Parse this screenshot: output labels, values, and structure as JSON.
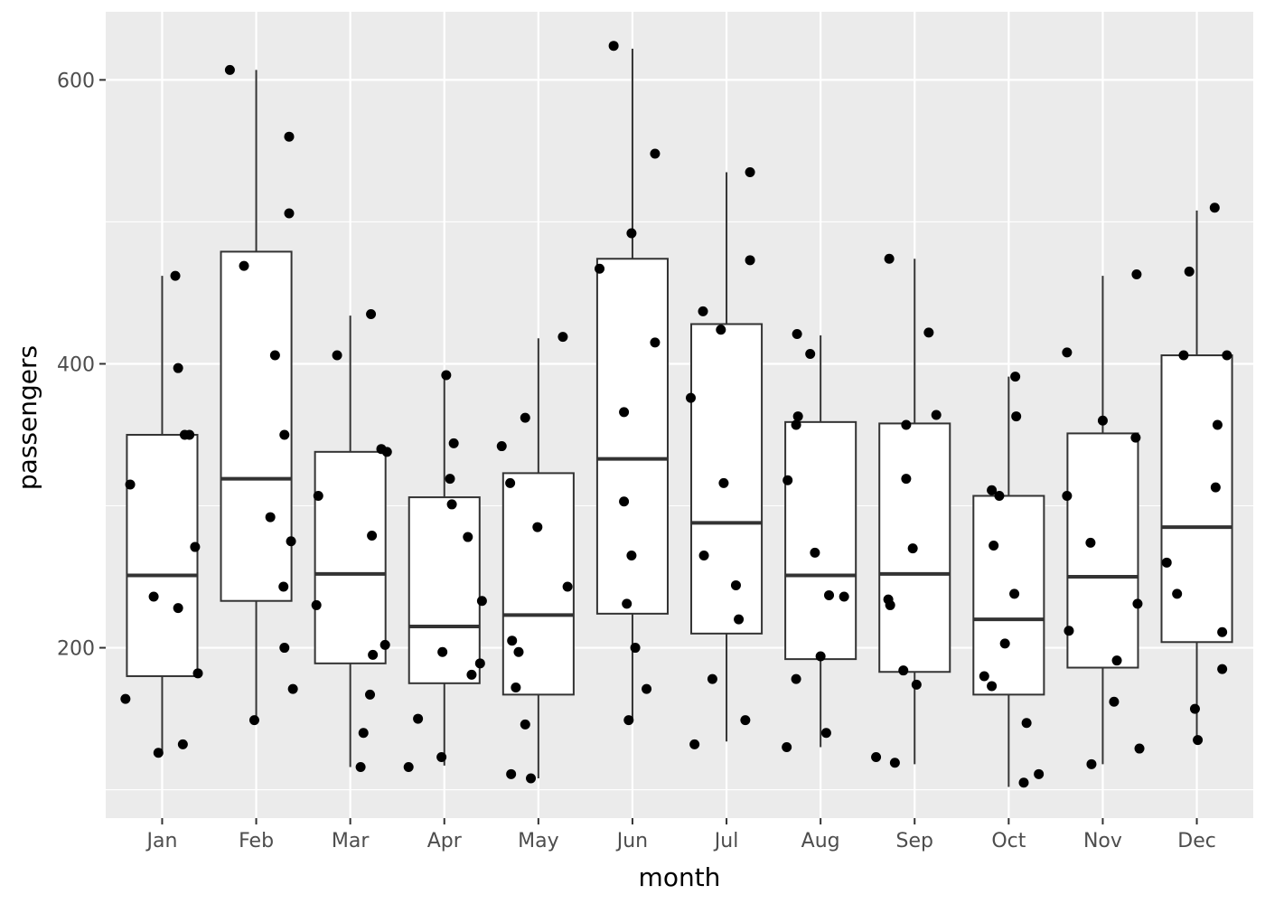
{
  "chart_data": {
    "type": "box",
    "xlabel": "month",
    "ylabel": "passengers",
    "categories": [
      "Jan",
      "Feb",
      "Mar",
      "Apr",
      "May",
      "Jun",
      "Jul",
      "Aug",
      "Sep",
      "Oct",
      "Nov",
      "Dec"
    ],
    "yticks": [
      200,
      400,
      600
    ],
    "ylim": [
      80,
      648
    ],
    "grid": true,
    "boxes": [
      {
        "category": "Jan",
        "whisker_low": 126,
        "q1": 180,
        "median": 251,
        "q3": 350,
        "whisker_high": 462
      },
      {
        "category": "Feb",
        "whisker_low": 150,
        "q1": 233,
        "median": 319,
        "q3": 479,
        "whisker_high": 607
      },
      {
        "category": "Mar",
        "whisker_low": 116,
        "q1": 189,
        "median": 252,
        "q3": 338,
        "whisker_high": 434
      },
      {
        "category": "Apr",
        "whisker_low": 117,
        "q1": 175,
        "median": 215,
        "q3": 306,
        "whisker_high": 391
      },
      {
        "category": "May",
        "whisker_low": 108,
        "q1": 167,
        "median": 223,
        "q3": 323,
        "whisker_high": 418
      },
      {
        "category": "Jun",
        "whisker_low": 149,
        "q1": 224,
        "median": 333,
        "q3": 474,
        "whisker_high": 622
      },
      {
        "category": "Jul",
        "whisker_low": 134,
        "q1": 210,
        "median": 288,
        "q3": 428,
        "whisker_high": 535
      },
      {
        "category": "Aug",
        "whisker_low": 130,
        "q1": 192,
        "median": 251,
        "q3": 359,
        "whisker_high": 420
      },
      {
        "category": "Sep",
        "whisker_low": 118,
        "q1": 183,
        "median": 252,
        "q3": 358,
        "whisker_high": 474
      },
      {
        "category": "Oct",
        "whisker_low": 102,
        "q1": 167,
        "median": 220,
        "q3": 307,
        "whisker_high": 391
      },
      {
        "category": "Nov",
        "whisker_low": 118,
        "q1": 186,
        "median": 250,
        "q3": 351,
        "whisker_high": 462
      },
      {
        "category": "Dec",
        "whisker_low": 137,
        "q1": 204,
        "median": 285,
        "q3": 406,
        "whisker_high": 508
      }
    ],
    "points": [
      {
        "x": "Jan",
        "offset": -0.39,
        "y": 164
      },
      {
        "x": "Jan",
        "offset": -0.34,
        "y": 315
      },
      {
        "x": "Jan",
        "offset": -0.09,
        "y": 236
      },
      {
        "x": "Jan",
        "offset": -0.04,
        "y": 126
      },
      {
        "x": "Jan",
        "offset": 0.14,
        "y": 462
      },
      {
        "x": "Jan",
        "offset": 0.17,
        "y": 397
      },
      {
        "x": "Jan",
        "offset": 0.17,
        "y": 228
      },
      {
        "x": "Jan",
        "offset": 0.22,
        "y": 132
      },
      {
        "x": "Jan",
        "offset": 0.24,
        "y": 350
      },
      {
        "x": "Jan",
        "offset": 0.29,
        "y": 350
      },
      {
        "x": "Jan",
        "offset": 0.35,
        "y": 271
      },
      {
        "x": "Jan",
        "offset": 0.38,
        "y": 182
      },
      {
        "x": "Feb",
        "offset": -0.28,
        "y": 607
      },
      {
        "x": "Feb",
        "offset": -0.13,
        "y": 469
      },
      {
        "x": "Feb",
        "offset": -0.02,
        "y": 149
      },
      {
        "x": "Feb",
        "offset": 0.15,
        "y": 292
      },
      {
        "x": "Feb",
        "offset": 0.2,
        "y": 406
      },
      {
        "x": "Feb",
        "offset": 0.29,
        "y": 243
      },
      {
        "x": "Feb",
        "offset": 0.3,
        "y": 200
      },
      {
        "x": "Feb",
        "offset": 0.3,
        "y": 350
      },
      {
        "x": "Feb",
        "offset": 0.35,
        "y": 560
      },
      {
        "x": "Feb",
        "offset": 0.35,
        "y": 506
      },
      {
        "x": "Feb",
        "offset": 0.37,
        "y": 275
      },
      {
        "x": "Feb",
        "offset": 0.39,
        "y": 171
      },
      {
        "x": "Mar",
        "offset": -0.36,
        "y": 230
      },
      {
        "x": "Mar",
        "offset": -0.34,
        "y": 307
      },
      {
        "x": "Mar",
        "offset": -0.14,
        "y": 406
      },
      {
        "x": "Mar",
        "offset": 0.11,
        "y": 116
      },
      {
        "x": "Mar",
        "offset": 0.14,
        "y": 140
      },
      {
        "x": "Mar",
        "offset": 0.21,
        "y": 167
      },
      {
        "x": "Mar",
        "offset": 0.22,
        "y": 435
      },
      {
        "x": "Mar",
        "offset": 0.23,
        "y": 279
      },
      {
        "x": "Mar",
        "offset": 0.24,
        "y": 195
      },
      {
        "x": "Mar",
        "offset": 0.33,
        "y": 340
      },
      {
        "x": "Mar",
        "offset": 0.37,
        "y": 202
      },
      {
        "x": "Mar",
        "offset": 0.39,
        "y": 338
      },
      {
        "x": "Apr",
        "offset": -0.38,
        "y": 116
      },
      {
        "x": "Apr",
        "offset": -0.28,
        "y": 150
      },
      {
        "x": "Apr",
        "offset": -0.03,
        "y": 123
      },
      {
        "x": "Apr",
        "offset": -0.02,
        "y": 197
      },
      {
        "x": "Apr",
        "offset": 0.02,
        "y": 392
      },
      {
        "x": "Apr",
        "offset": 0.06,
        "y": 319
      },
      {
        "x": "Apr",
        "offset": 0.08,
        "y": 301
      },
      {
        "x": "Apr",
        "offset": 0.1,
        "y": 344
      },
      {
        "x": "Apr",
        "offset": 0.25,
        "y": 278
      },
      {
        "x": "Apr",
        "offset": 0.29,
        "y": 181
      },
      {
        "x": "Apr",
        "offset": 0.38,
        "y": 189
      },
      {
        "x": "Apr",
        "offset": 0.4,
        "y": 233
      },
      {
        "x": "May",
        "offset": -0.39,
        "y": 342
      },
      {
        "x": "May",
        "offset": -0.3,
        "y": 316
      },
      {
        "x": "May",
        "offset": -0.29,
        "y": 111
      },
      {
        "x": "May",
        "offset": -0.28,
        "y": 205
      },
      {
        "x": "May",
        "offset": -0.24,
        "y": 172
      },
      {
        "x": "May",
        "offset": -0.21,
        "y": 197
      },
      {
        "x": "May",
        "offset": -0.14,
        "y": 362
      },
      {
        "x": "May",
        "offset": -0.14,
        "y": 146
      },
      {
        "x": "May",
        "offset": -0.08,
        "y": 108
      },
      {
        "x": "May",
        "offset": -0.01,
        "y": 285
      },
      {
        "x": "May",
        "offset": 0.26,
        "y": 419
      },
      {
        "x": "May",
        "offset": 0.31,
        "y": 243
      },
      {
        "x": "Jun",
        "offset": -0.35,
        "y": 467
      },
      {
        "x": "Jun",
        "offset": -0.2,
        "y": 624
      },
      {
        "x": "Jun",
        "offset": -0.09,
        "y": 366
      },
      {
        "x": "Jun",
        "offset": -0.09,
        "y": 303
      },
      {
        "x": "Jun",
        "offset": -0.06,
        "y": 231
      },
      {
        "x": "Jun",
        "offset": -0.04,
        "y": 149
      },
      {
        "x": "Jun",
        "offset": -0.01,
        "y": 265
      },
      {
        "x": "Jun",
        "offset": -0.01,
        "y": 492
      },
      {
        "x": "Jun",
        "offset": 0.03,
        "y": 200
      },
      {
        "x": "Jun",
        "offset": 0.15,
        "y": 171
      },
      {
        "x": "Jun",
        "offset": 0.24,
        "y": 415
      },
      {
        "x": "Jun",
        "offset": 0.24,
        "y": 548
      },
      {
        "x": "Jul",
        "offset": -0.38,
        "y": 376
      },
      {
        "x": "Jul",
        "offset": -0.34,
        "y": 132
      },
      {
        "x": "Jul",
        "offset": -0.25,
        "y": 437
      },
      {
        "x": "Jul",
        "offset": -0.24,
        "y": 265
      },
      {
        "x": "Jul",
        "offset": -0.15,
        "y": 178
      },
      {
        "x": "Jul",
        "offset": -0.06,
        "y": 424
      },
      {
        "x": "Jul",
        "offset": -0.03,
        "y": 316
      },
      {
        "x": "Jul",
        "offset": 0.1,
        "y": 244
      },
      {
        "x": "Jul",
        "offset": 0.13,
        "y": 220
      },
      {
        "x": "Jul",
        "offset": 0.2,
        "y": 149
      },
      {
        "x": "Jul",
        "offset": 0.25,
        "y": 473
      },
      {
        "x": "Jul",
        "offset": 0.25,
        "y": 535
      },
      {
        "x": "Aug",
        "offset": -0.36,
        "y": 130
      },
      {
        "x": "Aug",
        "offset": -0.35,
        "y": 318
      },
      {
        "x": "Aug",
        "offset": -0.26,
        "y": 178
      },
      {
        "x": "Aug",
        "offset": -0.26,
        "y": 357
      },
      {
        "x": "Aug",
        "offset": -0.25,
        "y": 421
      },
      {
        "x": "Aug",
        "offset": -0.24,
        "y": 363
      },
      {
        "x": "Aug",
        "offset": -0.11,
        "y": 407
      },
      {
        "x": "Aug",
        "offset": -0.06,
        "y": 267
      },
      {
        "x": "Aug",
        "offset": 0.0,
        "y": 194
      },
      {
        "x": "Aug",
        "offset": 0.06,
        "y": 140
      },
      {
        "x": "Aug",
        "offset": 0.09,
        "y": 237
      },
      {
        "x": "Aug",
        "offset": 0.25,
        "y": 236
      },
      {
        "x": "Sep",
        "offset": -0.41,
        "y": 123
      },
      {
        "x": "Sep",
        "offset": -0.28,
        "y": 234
      },
      {
        "x": "Sep",
        "offset": -0.27,
        "y": 474
      },
      {
        "x": "Sep",
        "offset": -0.26,
        "y": 230
      },
      {
        "x": "Sep",
        "offset": -0.21,
        "y": 119
      },
      {
        "x": "Sep",
        "offset": -0.12,
        "y": 184
      },
      {
        "x": "Sep",
        "offset": -0.09,
        "y": 357
      },
      {
        "x": "Sep",
        "offset": -0.09,
        "y": 319
      },
      {
        "x": "Sep",
        "offset": -0.02,
        "y": 270
      },
      {
        "x": "Sep",
        "offset": 0.02,
        "y": 174
      },
      {
        "x": "Sep",
        "offset": 0.15,
        "y": 422
      },
      {
        "x": "Sep",
        "offset": 0.23,
        "y": 364
      },
      {
        "x": "Oct",
        "offset": -0.26,
        "y": 180
      },
      {
        "x": "Oct",
        "offset": -0.18,
        "y": 173
      },
      {
        "x": "Oct",
        "offset": -0.18,
        "y": 311
      },
      {
        "x": "Oct",
        "offset": -0.16,
        "y": 272
      },
      {
        "x": "Oct",
        "offset": -0.1,
        "y": 307
      },
      {
        "x": "Oct",
        "offset": -0.04,
        "y": 203
      },
      {
        "x": "Oct",
        "offset": 0.06,
        "y": 238
      },
      {
        "x": "Oct",
        "offset": 0.07,
        "y": 391
      },
      {
        "x": "Oct",
        "offset": 0.08,
        "y": 363
      },
      {
        "x": "Oct",
        "offset": 0.16,
        "y": 105
      },
      {
        "x": "Oct",
        "offset": 0.19,
        "y": 147
      },
      {
        "x": "Oct",
        "offset": 0.32,
        "y": 111
      },
      {
        "x": "Nov",
        "offset": -0.38,
        "y": 408
      },
      {
        "x": "Nov",
        "offset": -0.38,
        "y": 307
      },
      {
        "x": "Nov",
        "offset": -0.36,
        "y": 212
      },
      {
        "x": "Nov",
        "offset": -0.13,
        "y": 274
      },
      {
        "x": "Nov",
        "offset": -0.12,
        "y": 118
      },
      {
        "x": "Nov",
        "offset": 0.0,
        "y": 360
      },
      {
        "x": "Nov",
        "offset": 0.12,
        "y": 162
      },
      {
        "x": "Nov",
        "offset": 0.15,
        "y": 191
      },
      {
        "x": "Nov",
        "offset": 0.35,
        "y": 348
      },
      {
        "x": "Nov",
        "offset": 0.36,
        "y": 463
      },
      {
        "x": "Nov",
        "offset": 0.37,
        "y": 231
      },
      {
        "x": "Nov",
        "offset": 0.39,
        "y": 129
      },
      {
        "x": "Dec",
        "offset": -0.32,
        "y": 260
      },
      {
        "x": "Dec",
        "offset": -0.21,
        "y": 238
      },
      {
        "x": "Dec",
        "offset": -0.14,
        "y": 406
      },
      {
        "x": "Dec",
        "offset": -0.08,
        "y": 465
      },
      {
        "x": "Dec",
        "offset": -0.02,
        "y": 157
      },
      {
        "x": "Dec",
        "offset": 0.01,
        "y": 135
      },
      {
        "x": "Dec",
        "offset": 0.19,
        "y": 510
      },
      {
        "x": "Dec",
        "offset": 0.2,
        "y": 313
      },
      {
        "x": "Dec",
        "offset": 0.22,
        "y": 357
      },
      {
        "x": "Dec",
        "offset": 0.27,
        "y": 185
      },
      {
        "x": "Dec",
        "offset": 0.27,
        "y": 211
      },
      {
        "x": "Dec",
        "offset": 0.32,
        "y": 406
      }
    ]
  }
}
